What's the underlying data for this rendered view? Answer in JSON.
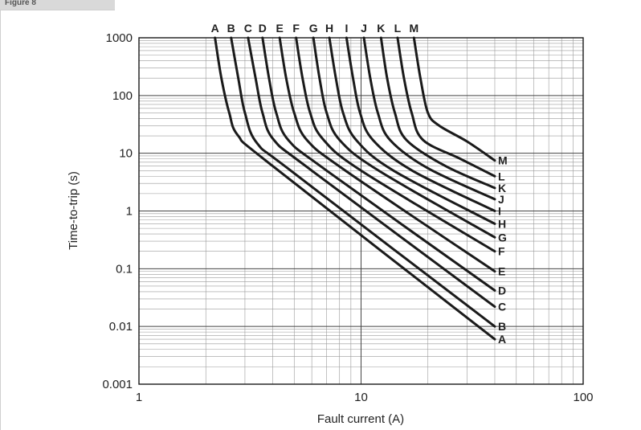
{
  "header": {
    "tab_text": "Figure 8"
  },
  "chart_data": {
    "type": "line",
    "title": "",
    "xlabel": "Fault current (A)",
    "ylabel": "Time-to-trip (s)",
    "xscale": "log",
    "yscale": "log",
    "xlim": [
      1,
      100
    ],
    "ylim": [
      0.001,
      1000
    ],
    "grid": true,
    "x_ticks": [
      "1",
      "10",
      "100"
    ],
    "y_ticks": [
      "1000",
      "100",
      "10",
      "1",
      "0.1",
      "0.01",
      "0.001"
    ],
    "series": [
      {
        "name": "A",
        "points": [
          [
            2.2,
            1000
          ],
          [
            2.35,
            200
          ],
          [
            2.55,
            50
          ],
          [
            2.8,
            20
          ],
          [
            4,
            6
          ],
          [
            40,
            0.006
          ]
        ]
      },
      {
        "name": "B",
        "points": [
          [
            2.6,
            1000
          ],
          [
            2.8,
            200
          ],
          [
            3,
            50
          ],
          [
            3.4,
            15
          ],
          [
            5,
            4.5
          ],
          [
            40,
            0.01
          ]
        ]
      },
      {
        "name": "C",
        "points": [
          [
            3.1,
            1000
          ],
          [
            3.35,
            200
          ],
          [
            3.6,
            50
          ],
          [
            4.05,
            17
          ],
          [
            6,
            5
          ],
          [
            40,
            0.022
          ]
        ]
      },
      {
        "name": "D",
        "points": [
          [
            3.6,
            1000
          ],
          [
            3.85,
            200
          ],
          [
            4.15,
            50
          ],
          [
            4.7,
            17
          ],
          [
            7,
            5
          ],
          [
            40,
            0.042
          ]
        ]
      },
      {
        "name": "E",
        "points": [
          [
            4.3,
            1000
          ],
          [
            4.6,
            200
          ],
          [
            5,
            50
          ],
          [
            5.7,
            17
          ],
          [
            8.5,
            5
          ],
          [
            40,
            0.09
          ]
        ]
      },
      {
        "name": "F",
        "points": [
          [
            5.1,
            1000
          ],
          [
            5.45,
            200
          ],
          [
            5.9,
            50
          ],
          [
            6.7,
            18
          ],
          [
            10,
            5
          ],
          [
            40,
            0.2
          ]
        ]
      },
      {
        "name": "G",
        "points": [
          [
            6.1,
            1000
          ],
          [
            6.5,
            200
          ],
          [
            7,
            50
          ],
          [
            8,
            17
          ],
          [
            12,
            5
          ],
          [
            40,
            0.35
          ]
        ]
      },
      {
        "name": "H",
        "points": [
          [
            7.2,
            1000
          ],
          [
            7.7,
            200
          ],
          [
            8.3,
            50
          ],
          [
            9.5,
            17
          ],
          [
            14,
            5
          ],
          [
            40,
            0.6
          ]
        ]
      },
      {
        "name": "I",
        "points": [
          [
            8.6,
            1000
          ],
          [
            9.2,
            200
          ],
          [
            9.9,
            50
          ],
          [
            11.3,
            17
          ],
          [
            17,
            5
          ],
          [
            40,
            1
          ]
        ]
      },
      {
        "name": "J",
        "points": [
          [
            10.3,
            1000
          ],
          [
            11,
            200
          ],
          [
            11.9,
            50
          ],
          [
            13.5,
            17
          ],
          [
            20,
            5.5
          ],
          [
            40,
            1.6
          ]
        ]
      },
      {
        "name": "K",
        "points": [
          [
            12.3,
            1000
          ],
          [
            13.1,
            200
          ],
          [
            14.2,
            50
          ],
          [
            16,
            17
          ],
          [
            24,
            6
          ],
          [
            40,
            2.5
          ]
        ]
      },
      {
        "name": "L",
        "points": [
          [
            14.6,
            1000
          ],
          [
            15.6,
            200
          ],
          [
            16.9,
            50
          ],
          [
            19,
            17
          ],
          [
            28,
            8
          ],
          [
            40,
            4
          ]
        ]
      },
      {
        "name": "M",
        "points": [
          [
            17.3,
            1000
          ],
          [
            18.5,
            200
          ],
          [
            20,
            50
          ],
          [
            22.5,
            30
          ],
          [
            30,
            16
          ],
          [
            40,
            7.5
          ]
        ]
      }
    ],
    "top_labels": [
      "A",
      "B",
      "C",
      "D",
      "E",
      "F",
      "G",
      "H",
      "I",
      "J",
      "K",
      "L",
      "M"
    ],
    "line_color": "#1a1a1a",
    "grid_color": "#9a9a9a"
  }
}
